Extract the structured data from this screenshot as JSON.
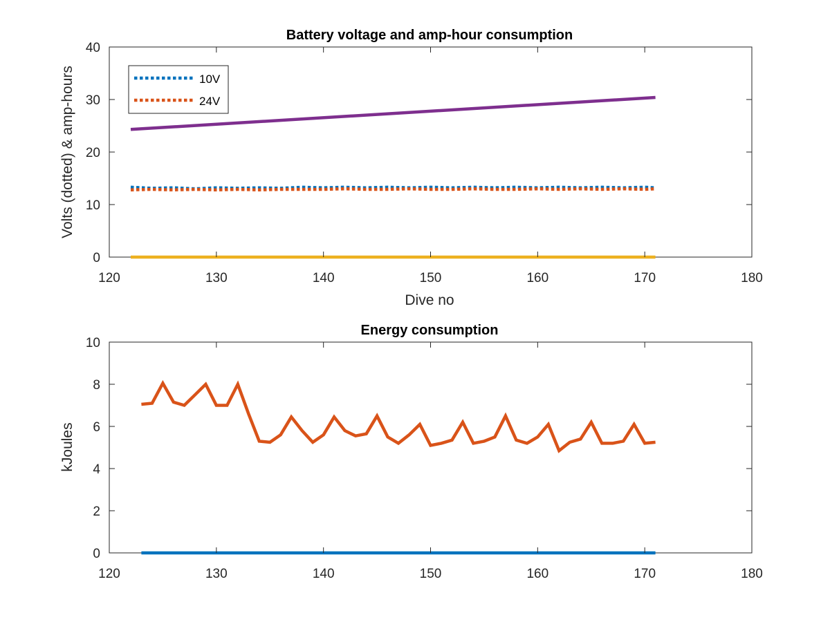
{
  "chart_data": [
    {
      "type": "line",
      "title": "Battery voltage and amp-hour consumption",
      "xlabel": "Dive no",
      "ylabel": "Volts (dotted) & amp-hours",
      "xlim": [
        120,
        180
      ],
      "ylim": [
        0,
        40
      ],
      "xticks": [
        "120",
        "130",
        "140",
        "150",
        "160",
        "170",
        "180"
      ],
      "yticks": [
        "0",
        "10",
        "20",
        "30",
        "40"
      ],
      "grid": false,
      "legend_position": "top-left",
      "series": [
        {
          "name": "10V",
          "color": "#0072BD",
          "style": "dotted",
          "in_legend": true,
          "x": [
            122,
            124,
            126,
            128,
            130,
            132,
            134,
            136,
            138,
            140,
            142,
            144,
            146,
            148,
            150,
            152,
            154,
            156,
            158,
            160,
            162,
            164,
            166,
            168,
            170,
            171
          ],
          "y": [
            13.3,
            13.1,
            13.2,
            13.0,
            13.2,
            13.1,
            13.2,
            13.1,
            13.3,
            13.2,
            13.3,
            13.2,
            13.3,
            13.2,
            13.3,
            13.2,
            13.3,
            13.2,
            13.3,
            13.2,
            13.3,
            13.2,
            13.3,
            13.2,
            13.3,
            13.2
          ]
        },
        {
          "name": "24V",
          "color": "#D95319",
          "style": "dotted",
          "in_legend": true,
          "x": [
            122,
            124,
            126,
            128,
            130,
            132,
            134,
            136,
            138,
            140,
            142,
            144,
            146,
            148,
            150,
            152,
            154,
            156,
            158,
            160,
            162,
            164,
            166,
            168,
            170,
            171
          ],
          "y": [
            12.8,
            12.9,
            12.8,
            12.9,
            12.8,
            12.9,
            12.8,
            12.9,
            12.9,
            12.9,
            13.0,
            12.9,
            12.9,
            13.0,
            12.9,
            12.9,
            13.0,
            12.9,
            12.9,
            13.0,
            12.9,
            13.0,
            12.9,
            13.0,
            12.9,
            13.0
          ]
        },
        {
          "color": "#EDB120",
          "style": "solid",
          "in_legend": false,
          "x": [
            122,
            171
          ],
          "y": [
            0,
            0
          ]
        },
        {
          "color": "#7E2F8E",
          "style": "solid",
          "in_legend": false,
          "x": [
            122,
            171
          ],
          "y": [
            24.3,
            30.4
          ]
        }
      ]
    },
    {
      "type": "line",
      "title": "Energy consumption",
      "xlabel": "",
      "ylabel": "kJoules",
      "xlim": [
        120,
        180
      ],
      "ylim": [
        0,
        10
      ],
      "xticks": [
        "120",
        "130",
        "140",
        "150",
        "160",
        "170",
        "180"
      ],
      "yticks": [
        "0",
        "2",
        "4",
        "6",
        "8",
        "10"
      ],
      "grid": false,
      "series": [
        {
          "color": "#0072BD",
          "style": "solid",
          "x": [
            123,
            171
          ],
          "y": [
            0,
            0
          ]
        },
        {
          "color": "#D95319",
          "style": "solid",
          "x": [
            123,
            124,
            125,
            126,
            127,
            128,
            129,
            130,
            131,
            132,
            133,
            134,
            135,
            136,
            137,
            138,
            139,
            140,
            141,
            142,
            143,
            144,
            145,
            146,
            147,
            148,
            149,
            150,
            151,
            152,
            153,
            154,
            155,
            156,
            157,
            158,
            159,
            160,
            161,
            162,
            163,
            164,
            165,
            166,
            167,
            168,
            169,
            170,
            171
          ],
          "y": [
            7.05,
            7.1,
            8.05,
            7.15,
            7.0,
            7.5,
            8.0,
            7.0,
            7.0,
            8.0,
            6.6,
            5.3,
            5.25,
            5.6,
            6.45,
            5.8,
            5.25,
            5.6,
            6.45,
            5.8,
            5.55,
            5.65,
            6.5,
            5.5,
            5.2,
            5.6,
            6.1,
            5.1,
            5.2,
            5.35,
            6.2,
            5.2,
            5.3,
            5.5,
            6.5,
            5.35,
            5.2,
            5.5,
            6.1,
            4.85,
            5.25,
            5.4,
            6.2,
            5.2,
            5.2,
            5.3,
            6.1,
            5.2,
            5.25
          ]
        }
      ]
    }
  ]
}
